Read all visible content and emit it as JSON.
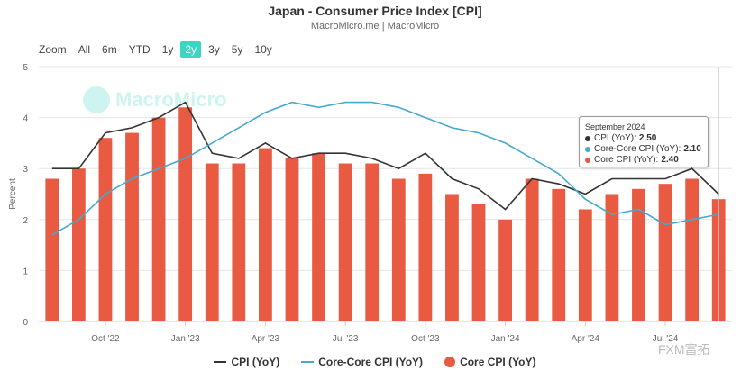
{
  "chart_data": {
    "type": "bar",
    "title": "Japan - Consumer Price Index [CPI]",
    "subtitle": "MacroMicro.me | MacroMicro",
    "ylabel": "Percent",
    "ylim": [
      0,
      5
    ],
    "yticks": [
      0,
      1,
      2,
      3,
      4,
      5
    ],
    "x": [
      "2022-08",
      "2022-09",
      "2022-10",
      "2022-11",
      "2022-12",
      "2023-01",
      "2023-02",
      "2023-03",
      "2023-04",
      "2023-05",
      "2023-06",
      "2023-07",
      "2023-08",
      "2023-09",
      "2023-10",
      "2023-11",
      "2023-12",
      "2024-01",
      "2024-02",
      "2024-03",
      "2024-04",
      "2024-05",
      "2024-06",
      "2024-07",
      "2024-08",
      "2024-09"
    ],
    "xtick_labels": [
      {
        "index": 2,
        "label": "Oct '22"
      },
      {
        "index": 5,
        "label": "Jan '23"
      },
      {
        "index": 8,
        "label": "Apr '23"
      },
      {
        "index": 11,
        "label": "Jul '23"
      },
      {
        "index": 14,
        "label": "Oct '23"
      },
      {
        "index": 17,
        "label": "Jan '24"
      },
      {
        "index": 20,
        "label": "Apr '24"
      },
      {
        "index": 23,
        "label": "Jul '24"
      }
    ],
    "series": [
      {
        "name": "CPI (YoY)",
        "type": "line",
        "color": "#333333",
        "values": [
          3.0,
          3.0,
          3.7,
          3.8,
          4.0,
          4.3,
          3.3,
          3.2,
          3.5,
          3.2,
          3.3,
          3.3,
          3.2,
          3.0,
          3.3,
          2.8,
          2.6,
          2.2,
          2.8,
          2.7,
          2.5,
          2.8,
          2.8,
          2.8,
          3.0,
          2.5
        ]
      },
      {
        "name": "Core-Core CPI (YoY)",
        "type": "line",
        "color": "#45a9d1",
        "values": [
          1.7,
          2.0,
          2.5,
          2.8,
          3.0,
          3.2,
          3.5,
          3.8,
          4.1,
          4.3,
          4.2,
          4.3,
          4.3,
          4.2,
          4.0,
          3.8,
          3.7,
          3.5,
          3.2,
          2.9,
          2.4,
          2.1,
          2.2,
          1.9,
          2.0,
          2.1
        ]
      },
      {
        "name": "Core CPI (YoY)",
        "type": "bar",
        "color": "#e85a42",
        "values": [
          2.8,
          3.0,
          3.6,
          3.7,
          4.0,
          4.2,
          3.1,
          3.1,
          3.4,
          3.2,
          3.3,
          3.1,
          3.1,
          2.8,
          2.9,
          2.5,
          2.3,
          2.0,
          2.8,
          2.6,
          2.2,
          2.5,
          2.6,
          2.7,
          2.8,
          2.4
        ]
      }
    ],
    "legend_position": "bottom-center",
    "grid": true
  },
  "zoom": {
    "label": "Zoom",
    "options": [
      "All",
      "6m",
      "YTD",
      "1y",
      "2y",
      "3y",
      "5y",
      "10y"
    ],
    "selected": "2y"
  },
  "tooltip": {
    "title": "September 2024",
    "rows": [
      {
        "label": "CPI (YoY):",
        "value": "2.50",
        "color": "#333333"
      },
      {
        "label": "Core-Core CPI (YoY):",
        "value": "2.10",
        "color": "#45a9d1"
      },
      {
        "label": "Core CPI (YoY):",
        "value": "2.40",
        "color": "#e85a42"
      }
    ]
  },
  "legend": [
    {
      "label": "CPI (YoY)",
      "color": "#333333",
      "kind": "line"
    },
    {
      "label": "Core-Core CPI (YoY)",
      "color": "#45a9d1",
      "kind": "line"
    },
    {
      "label": "Core CPI (YoY)",
      "color": "#e85a42",
      "kind": "dot"
    }
  ],
  "watermark": "MacroMicro",
  "corner_mark": "FXM富拓"
}
